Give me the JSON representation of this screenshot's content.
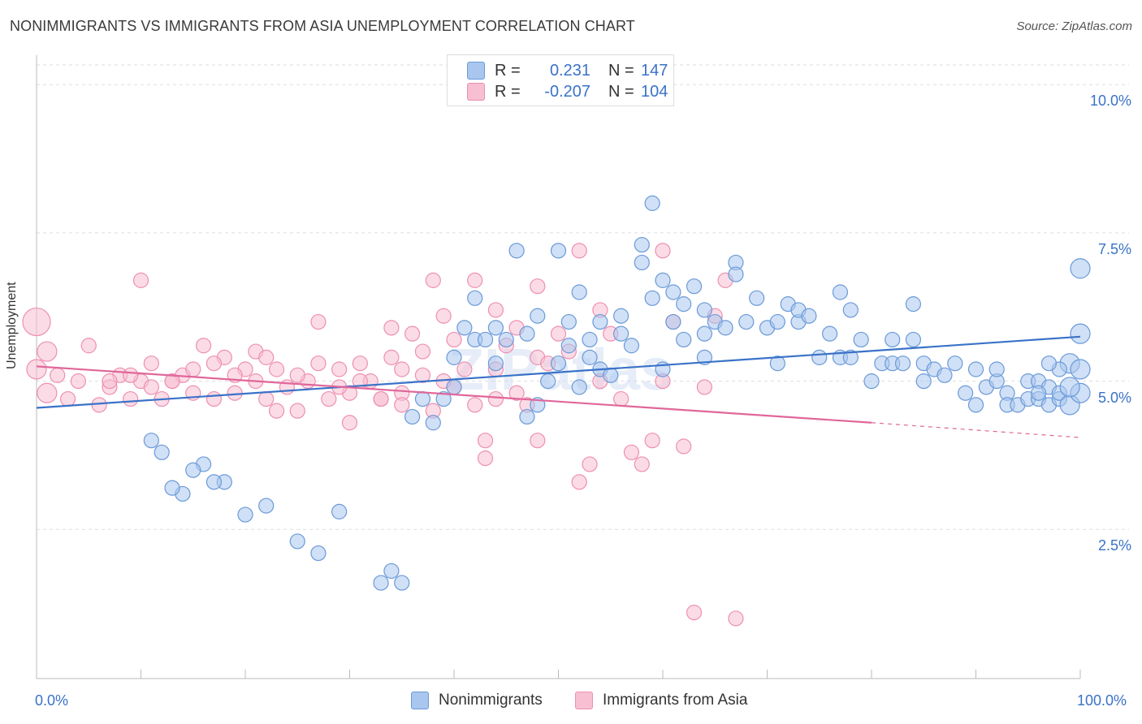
{
  "title": "NONIMMIGRANTS VS IMMIGRANTS FROM ASIA UNEMPLOYMENT CORRELATION CHART",
  "source": "Source: ZipAtlas.com",
  "watermark": "ZIPatlas",
  "colors": {
    "blue": "#3a72c8",
    "blue_fill": "#a9c6ee",
    "blue_stroke": "#6a9ad8",
    "pink": "#e0679a",
    "pink_fill": "#f7bfd1",
    "pink_stroke": "#ee8fb1",
    "grid": "#dddddd"
  },
  "legend": {
    "r_label": "R =",
    "n_label": "N =",
    "rows": [
      {
        "r": "0.231",
        "n": "147"
      },
      {
        "r": "-0.207",
        "n": "104"
      }
    ]
  },
  "chart_data": {
    "type": "scatter",
    "title": "NONIMMIGRANTS VS IMMIGRANTS FROM ASIA UNEMPLOYMENT CORRELATION CHART",
    "xlabel": "",
    "ylabel": "Unemployment",
    "xlim": [
      0,
      100
    ],
    "ylim": [
      0,
      10.4
    ],
    "x_tick_labels": [
      "0.0%",
      "100.0%"
    ],
    "y_ticks": [
      2.5,
      5.0,
      7.5,
      10.0
    ],
    "y_tick_labels": [
      "2.5%",
      "5.0%",
      "7.5%",
      "10.0%"
    ],
    "grid": "horizontal dashed",
    "legend_position": "top-center and bottom",
    "series": [
      {
        "name": "Nonimmigrants",
        "r": 0.231,
        "n": 147,
        "trend": {
          "x": [
            0,
            100
          ],
          "y": [
            4.55,
            5.75
          ]
        },
        "points": [
          [
            35,
            1.6
          ],
          [
            34,
            1.8
          ],
          [
            33,
            1.6
          ],
          [
            29,
            2.8
          ],
          [
            27,
            2.1
          ],
          [
            25,
            2.3
          ],
          [
            22,
            2.9
          ],
          [
            20,
            2.75
          ],
          [
            18,
            3.3
          ],
          [
            17,
            3.3
          ],
          [
            16,
            3.6
          ],
          [
            15,
            3.5
          ],
          [
            14,
            3.1
          ],
          [
            13,
            3.2
          ],
          [
            12,
            3.8
          ],
          [
            11,
            4.0
          ],
          [
            36,
            4.4
          ],
          [
            37,
            4.7
          ],
          [
            38,
            4.3
          ],
          [
            39,
            4.7
          ],
          [
            40,
            4.9
          ],
          [
            40,
            5.4
          ],
          [
            41,
            5.9
          ],
          [
            42,
            5.7
          ],
          [
            42,
            6.4
          ],
          [
            43,
            5.7
          ],
          [
            44,
            5.3
          ],
          [
            44,
            5.9
          ],
          [
            45,
            5.7
          ],
          [
            46,
            7.2
          ],
          [
            47,
            4.4
          ],
          [
            47,
            5.8
          ],
          [
            48,
            4.6
          ],
          [
            48,
            6.1
          ],
          [
            49,
            5.0
          ],
          [
            50,
            5.3
          ],
          [
            50,
            7.2
          ],
          [
            51,
            6.0
          ],
          [
            51,
            5.6
          ],
          [
            52,
            6.5
          ],
          [
            52,
            4.9
          ],
          [
            53,
            5.7
          ],
          [
            53,
            5.4
          ],
          [
            54,
            6.0
          ],
          [
            54,
            5.2
          ],
          [
            55,
            5.1
          ],
          [
            56,
            5.8
          ],
          [
            56,
            6.1
          ],
          [
            57,
            5.6
          ],
          [
            58,
            7.0
          ],
          [
            58,
            7.3
          ],
          [
            59,
            6.4
          ],
          [
            59,
            8.0
          ],
          [
            60,
            6.7
          ],
          [
            60,
            5.2
          ],
          [
            61,
            6.5
          ],
          [
            61,
            6.0
          ],
          [
            62,
            6.3
          ],
          [
            62,
            5.7
          ],
          [
            63,
            6.6
          ],
          [
            64,
            5.4
          ],
          [
            64,
            6.2
          ],
          [
            64,
            5.8
          ],
          [
            65,
            6.0
          ],
          [
            66,
            5.9
          ],
          [
            67,
            7.0
          ],
          [
            67,
            6.8
          ],
          [
            68,
            6.0
          ],
          [
            69,
            6.4
          ],
          [
            70,
            5.9
          ],
          [
            71,
            6.0
          ],
          [
            71,
            5.3
          ],
          [
            72,
            6.3
          ],
          [
            73,
            6.0
          ],
          [
            73,
            6.2
          ],
          [
            74,
            6.1
          ],
          [
            75,
            5.4
          ],
          [
            76,
            5.8
          ],
          [
            77,
            5.4
          ],
          [
            77,
            6.5
          ],
          [
            78,
            6.2
          ],
          [
            78,
            5.4
          ],
          [
            79,
            5.7
          ],
          [
            80,
            5.0
          ],
          [
            81,
            5.3
          ],
          [
            82,
            5.7
          ],
          [
            82,
            5.3
          ],
          [
            83,
            5.3
          ],
          [
            84,
            5.7
          ],
          [
            84,
            6.3
          ],
          [
            85,
            5.0
          ],
          [
            85,
            5.3
          ],
          [
            86,
            5.2
          ],
          [
            87,
            5.1
          ],
          [
            88,
            5.3
          ],
          [
            89,
            4.8
          ],
          [
            90,
            5.2
          ],
          [
            90,
            4.6
          ],
          [
            91,
            4.9
          ],
          [
            92,
            5.0
          ],
          [
            92,
            5.2
          ],
          [
            93,
            4.8
          ],
          [
            93,
            4.6
          ],
          [
            94,
            4.6
          ],
          [
            95,
            4.7
          ],
          [
            95,
            5.0
          ],
          [
            96,
            4.7
          ],
          [
            96,
            5.0
          ],
          [
            97,
            4.6
          ],
          [
            97,
            4.9
          ],
          [
            98,
            4.7
          ],
          [
            98,
            4.8
          ],
          [
            99,
            5.3
          ],
          [
            99,
            4.6
          ],
          [
            100,
            4.8
          ],
          [
            100,
            5.2
          ],
          [
            98,
            5.2
          ],
          [
            99,
            4.9
          ],
          [
            100,
            5.8
          ],
          [
            100,
            6.9
          ],
          [
            97,
            5.3
          ],
          [
            96,
            4.8
          ]
        ]
      },
      {
        "name": "Immigrants from Asia",
        "r": -0.207,
        "n": 104,
        "trend": {
          "x": [
            0,
            80
          ],
          "y": [
            5.25,
            4.3
          ]
        },
        "trend_dashed": {
          "x": [
            80,
            100
          ],
          "y": [
            4.3,
            4.05
          ]
        },
        "points": [
          [
            0,
            6.0
          ],
          [
            0,
            5.2
          ],
          [
            1,
            5.5
          ],
          [
            1,
            4.8
          ],
          [
            2,
            5.1
          ],
          [
            3,
            4.7
          ],
          [
            4,
            5.0
          ],
          [
            5,
            5.6
          ],
          [
            6,
            4.6
          ],
          [
            7,
            4.9
          ],
          [
            8,
            5.1
          ],
          [
            9,
            4.7
          ],
          [
            10,
            5.0
          ],
          [
            10,
            6.7
          ],
          [
            11,
            5.3
          ],
          [
            12,
            4.7
          ],
          [
            13,
            5.0
          ],
          [
            14,
            5.1
          ],
          [
            15,
            4.8
          ],
          [
            16,
            5.6
          ],
          [
            17,
            4.7
          ],
          [
            18,
            5.4
          ],
          [
            19,
            4.8
          ],
          [
            20,
            5.2
          ],
          [
            21,
            5.5
          ],
          [
            22,
            4.7
          ],
          [
            22,
            5.4
          ],
          [
            23,
            4.5
          ],
          [
            24,
            4.9
          ],
          [
            25,
            4.5
          ],
          [
            26,
            5.0
          ],
          [
            27,
            6.0
          ],
          [
            28,
            4.7
          ],
          [
            29,
            5.2
          ],
          [
            30,
            4.8
          ],
          [
            30,
            4.3
          ],
          [
            31,
            5.3
          ],
          [
            32,
            5.0
          ],
          [
            33,
            4.7
          ],
          [
            34,
            5.9
          ],
          [
            34,
            5.4
          ],
          [
            35,
            4.8
          ],
          [
            35,
            4.6
          ],
          [
            36,
            5.8
          ],
          [
            37,
            5.1
          ],
          [
            38,
            4.5
          ],
          [
            38,
            6.7
          ],
          [
            39,
            6.1
          ],
          [
            40,
            5.7
          ],
          [
            40,
            4.9
          ],
          [
            41,
            5.2
          ],
          [
            42,
            4.6
          ],
          [
            43,
            4.0
          ],
          [
            43,
            3.7
          ],
          [
            44,
            5.2
          ],
          [
            44,
            4.7
          ],
          [
            45,
            5.6
          ],
          [
            46,
            5.9
          ],
          [
            47,
            4.6
          ],
          [
            48,
            4.0
          ],
          [
            48,
            5.4
          ],
          [
            49,
            5.3
          ],
          [
            50,
            5.8
          ],
          [
            51,
            5.5
          ],
          [
            52,
            3.3
          ],
          [
            53,
            3.6
          ],
          [
            54,
            6.2
          ],
          [
            54,
            5.0
          ],
          [
            55,
            5.8
          ],
          [
            56,
            4.7
          ],
          [
            57,
            3.8
          ],
          [
            58,
            3.6
          ],
          [
            59,
            4.0
          ],
          [
            60,
            5.0
          ],
          [
            61,
            6.0
          ],
          [
            62,
            3.9
          ],
          [
            63,
            1.1
          ],
          [
            64,
            4.9
          ],
          [
            65,
            6.1
          ],
          [
            66,
            6.7
          ],
          [
            67,
            1.0
          ],
          [
            60,
            7.2
          ],
          [
            52,
            7.2
          ],
          [
            48,
            6.6
          ],
          [
            46,
            4.8
          ],
          [
            44,
            6.2
          ],
          [
            42,
            6.7
          ],
          [
            39,
            5.0
          ],
          [
            37,
            5.5
          ],
          [
            35,
            5.2
          ],
          [
            33,
            4.7
          ],
          [
            31,
            5.0
          ],
          [
            29,
            4.9
          ],
          [
            27,
            5.3
          ],
          [
            25,
            5.1
          ],
          [
            23,
            5.2
          ],
          [
            21,
            5.0
          ],
          [
            19,
            5.1
          ],
          [
            17,
            5.3
          ],
          [
            15,
            5.2
          ],
          [
            13,
            5.0
          ],
          [
            11,
            4.9
          ],
          [
            9,
            5.1
          ],
          [
            7,
            5.0
          ]
        ]
      }
    ]
  }
}
